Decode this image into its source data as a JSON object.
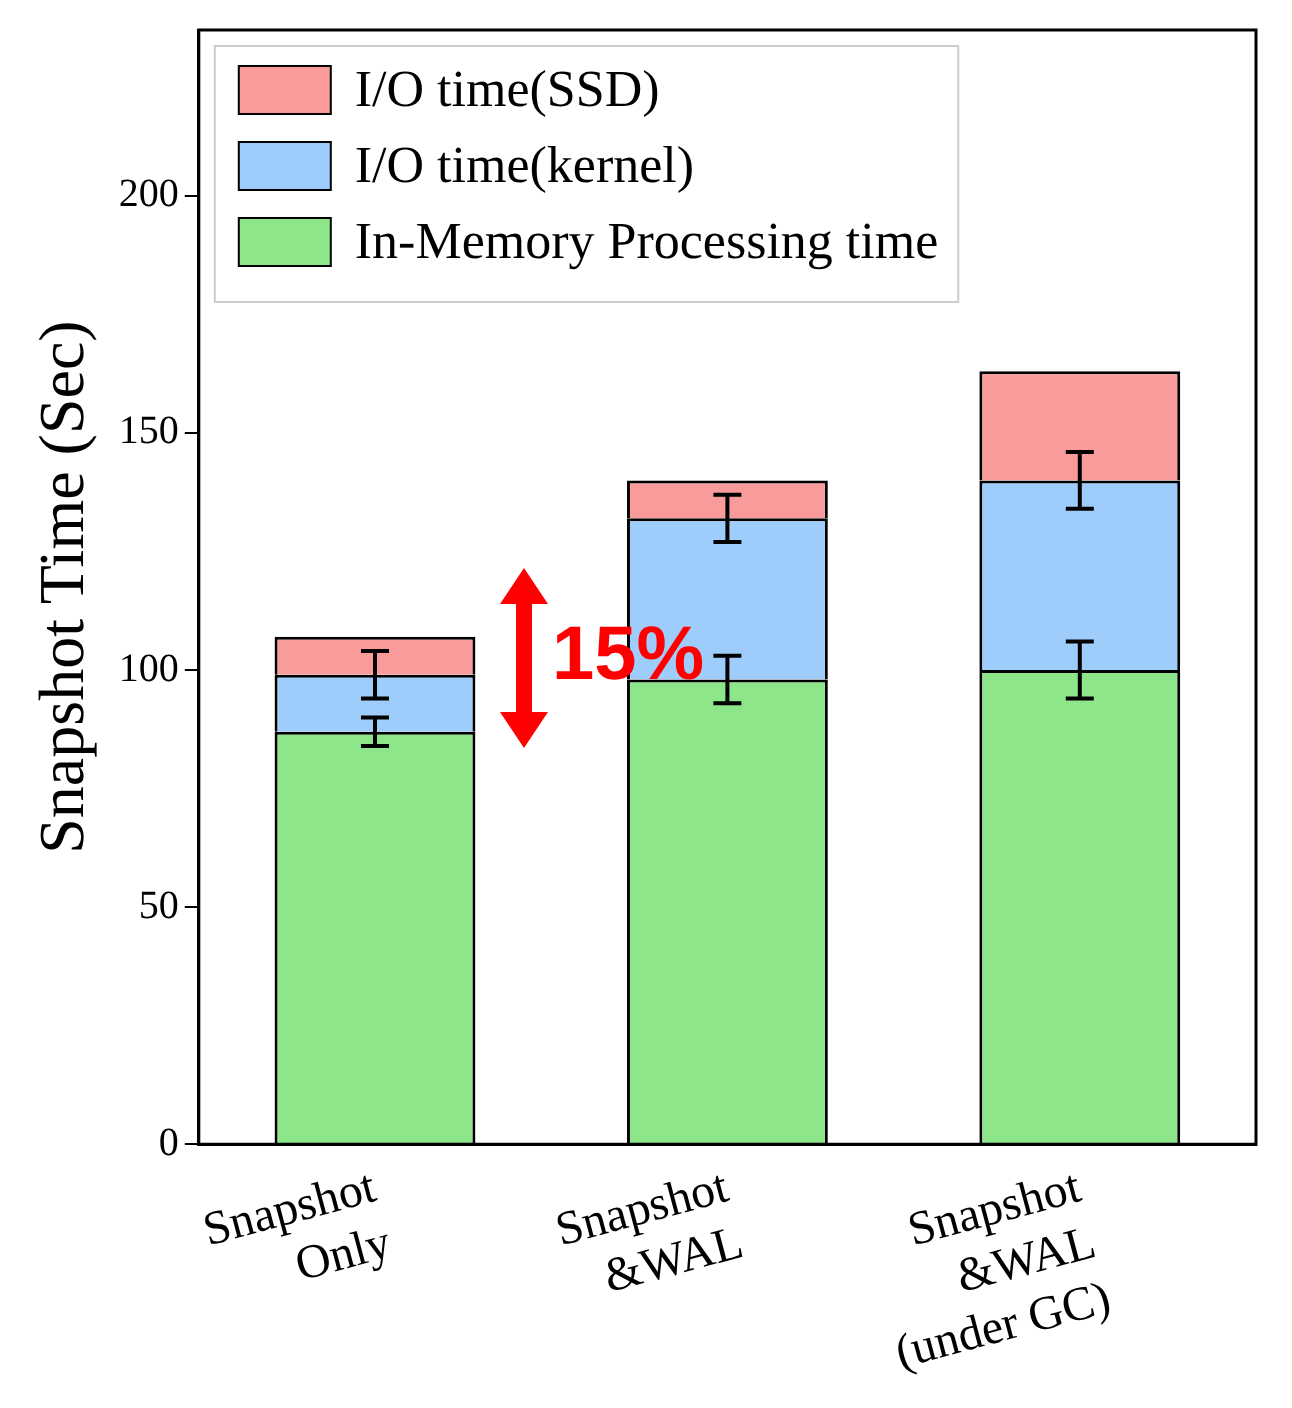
{
  "chart_data": {
    "type": "bar",
    "ylabel": "Snapshot Time (Sec)",
    "categories": [
      "Snapshot\nOnly",
      "Snapshot\n&WAL",
      "Snapshot\n&WAL\n(under GC)"
    ],
    "stacked": true,
    "ylim": [
      0,
      235
    ],
    "yticks": [
      0,
      50,
      100,
      150,
      200
    ],
    "grid": false,
    "legend": "top left",
    "annotations": [
      "15%"
    ],
    "series": [
      {
        "name": "In-Memory Processing time",
        "color": "#8ee68a",
        "values": [
          87,
          98,
          100
        ],
        "errors": [
          3,
          5,
          6
        ]
      },
      {
        "name": "I/O time(kernel)",
        "color": "#9fcdfb",
        "values": [
          12,
          34,
          40
        ],
        "errors": [
          5,
          5,
          6
        ]
      },
      {
        "name": "I/O time(SSD)",
        "color": "#f99b9b",
        "values": [
          8,
          8,
          23
        ]
      }
    ]
  }
}
